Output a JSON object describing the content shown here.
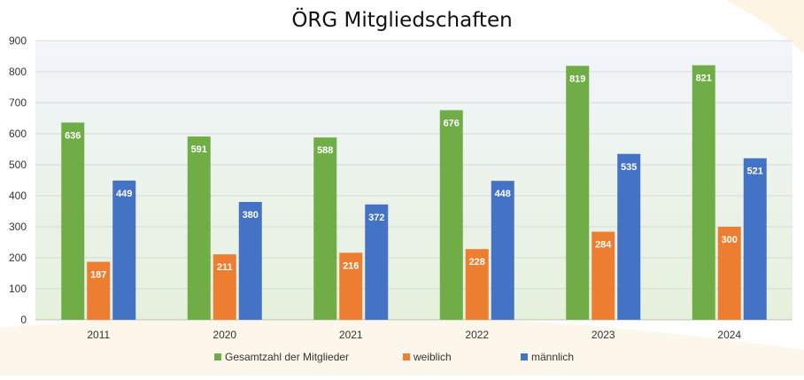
{
  "chart_data": {
    "type": "bar",
    "title": "ÖRG Mitgliedschaften",
    "xlabel": "",
    "ylabel": "",
    "categories": [
      "2011",
      "2020",
      "2021",
      "2022",
      "2023",
      "2024"
    ],
    "series": [
      {
        "name": "Gesamtzahl der Mitglieder",
        "color": "#70AD47",
        "values": [
          636,
          591,
          588,
          676,
          819,
          821
        ]
      },
      {
        "name": "weiblich",
        "color": "#ED7D31",
        "values": [
          187,
          211,
          216,
          228,
          284,
          300
        ]
      },
      {
        "name": "männlich",
        "color": "#4472C4",
        "values": [
          449,
          380,
          372,
          448,
          535,
          521
        ]
      }
    ],
    "ylim": [
      0,
      900
    ],
    "yticks": [
      0,
      100,
      200,
      300,
      400,
      500,
      600,
      700,
      800,
      900
    ],
    "grid": true,
    "legend_position": "bottom",
    "data_labels": true
  }
}
